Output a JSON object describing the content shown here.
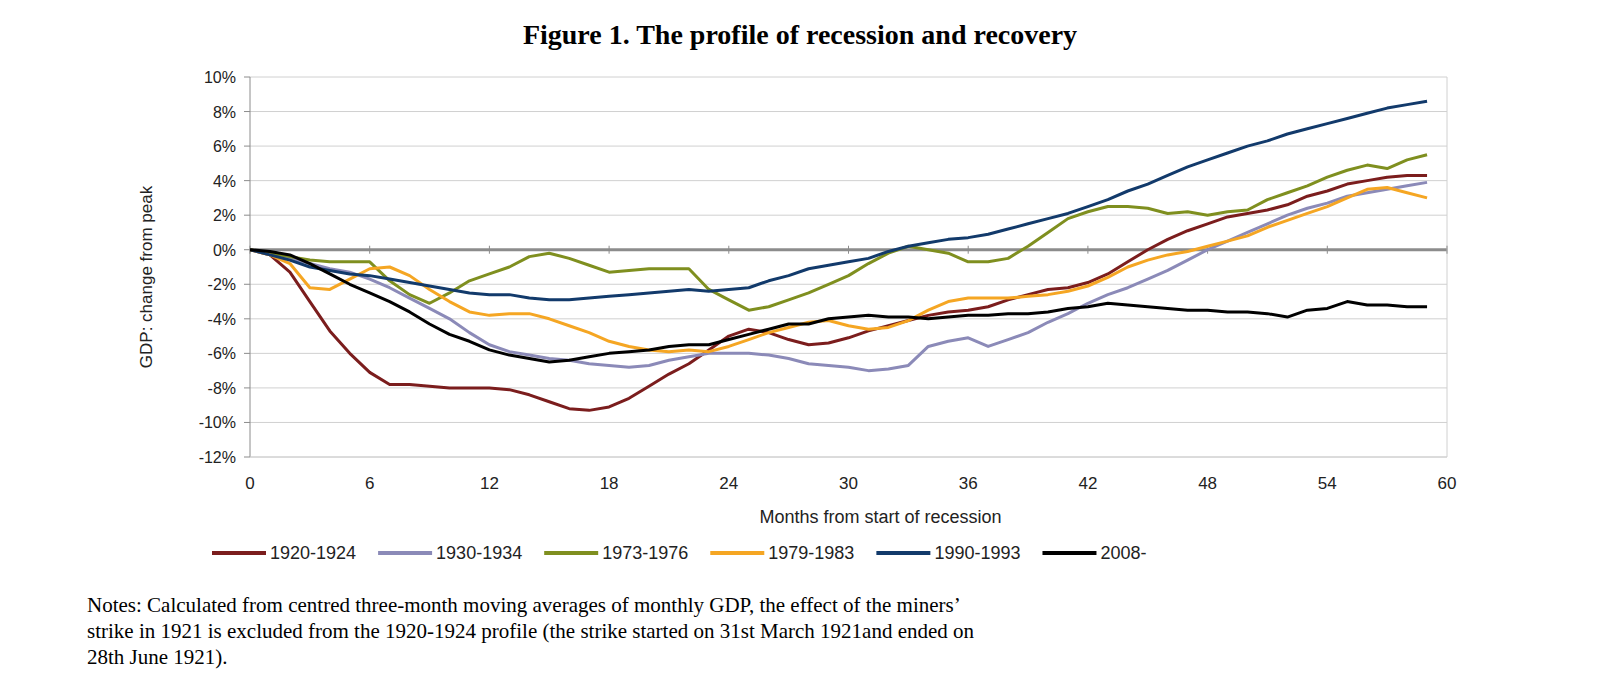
{
  "chart_data": {
    "type": "line",
    "title": "Figure 1. The profile of recession and recovery",
    "x_label": "Months from start of recession",
    "y_label": "GDP: change from peak",
    "notes": [
      "Notes: Calculated from centred three-month moving averages of monthly GDP, the effect of the miners’",
      "strike in 1921 is excluded from the 1920-1924 profile (the strike started on 31st March 1921and ended on",
      "28th June 1921)."
    ],
    "x": [
      0,
      1,
      2,
      3,
      4,
      5,
      6,
      7,
      8,
      9,
      10,
      11,
      12,
      13,
      14,
      15,
      16,
      17,
      18,
      19,
      20,
      21,
      22,
      23,
      24,
      25,
      26,
      27,
      28,
      29,
      30,
      31,
      32,
      33,
      34,
      35,
      36,
      37,
      38,
      39,
      40,
      41,
      42,
      43,
      44,
      45,
      46,
      47,
      48,
      49,
      50,
      51,
      52,
      53,
      54,
      55,
      56,
      57,
      58,
      59
    ],
    "xlim": [
      0,
      60
    ],
    "xticks": [
      0,
      6,
      12,
      18,
      24,
      30,
      36,
      42,
      48,
      54,
      60
    ],
    "ylim": [
      -12,
      10
    ],
    "yticks": [
      {
        "value": -12,
        "label": "-12%"
      },
      {
        "value": -10,
        "label": "-10%"
      },
      {
        "value": -8,
        "label": "-8%"
      },
      {
        "value": -6,
        "label": "-6%"
      },
      {
        "value": -4,
        "label": "-4%"
      },
      {
        "value": -2,
        "label": "-2%"
      },
      {
        "value": 0,
        "label": "0%"
      },
      {
        "value": 2,
        "label": "2%"
      },
      {
        "value": 4,
        "label": "4%"
      },
      {
        "value": 6,
        "label": "6%"
      },
      {
        "value": 8,
        "label": "8%"
      },
      {
        "value": 10,
        "label": "10%"
      }
    ],
    "grid": true,
    "legend": "bottom",
    "series": [
      {
        "name": "1920-1924",
        "color": "#7b1d1d",
        "values": [
          0,
          -0.3,
          -1.3,
          -3,
          -4.7,
          -6,
          -7.1,
          -7.8,
          -7.8,
          -7.9,
          -8,
          -8,
          -8,
          -8.1,
          -8.4,
          -8.8,
          -9.2,
          -9.3,
          -9.1,
          -8.6,
          -7.9,
          -7.2,
          -6.6,
          -5.8,
          -5,
          -4.6,
          -4.8,
          -5.2,
          -5.5,
          -5.4,
          -5.1,
          -4.7,
          -4.4,
          -4.1,
          -3.8,
          -3.6,
          -3.5,
          -3.3,
          -2.9,
          -2.6,
          -2.3,
          -2.2,
          -1.9,
          -1.4,
          -0.7,
          0,
          0.6,
          1.1,
          1.5,
          1.9,
          2.1,
          2.3,
          2.6,
          3.1,
          3.4,
          3.8,
          4,
          4.2,
          4.3,
          4.3
        ]
      },
      {
        "name": "1930-1934",
        "color": "#8b8ab8",
        "values": [
          0,
          -0.2,
          -0.5,
          -0.8,
          -1.1,
          -1.3,
          -1.7,
          -2.2,
          -2.8,
          -3.4,
          -4,
          -4.8,
          -5.5,
          -5.9,
          -6.1,
          -6.3,
          -6.4,
          -6.6,
          -6.7,
          -6.8,
          -6.7,
          -6.4,
          -6.2,
          -6,
          -6,
          -6,
          -6.1,
          -6.3,
          -6.6,
          -6.7,
          -6.8,
          -7,
          -6.9,
          -6.7,
          -5.6,
          -5.3,
          -5.1,
          -5.6,
          -5.2,
          -4.8,
          -4.2,
          -3.7,
          -3.1,
          -2.6,
          -2.2,
          -1.7,
          -1.2,
          -0.6,
          0,
          0.5,
          1,
          1.5,
          2,
          2.4,
          2.7,
          3.1,
          3.3,
          3.5,
          3.7,
          3.9
        ]
      },
      {
        "name": "1973-1976",
        "color": "#7f8f1f",
        "values": [
          0,
          -0.2,
          -0.4,
          -0.6,
          -0.7,
          -0.7,
          -0.7,
          -1.8,
          -2.6,
          -3.1,
          -2.5,
          -1.8,
          -1.4,
          -1,
          -0.4,
          -0.2,
          -0.5,
          -0.9,
          -1.3,
          -1.2,
          -1.1,
          -1.1,
          -1.1,
          -2.3,
          -2.9,
          -3.5,
          -3.3,
          -2.9,
          -2.5,
          -2,
          -1.5,
          -0.8,
          -0.2,
          0.2,
          0,
          -0.2,
          -0.7,
          -0.7,
          -0.5,
          0.2,
          1,
          1.8,
          2.2,
          2.5,
          2.5,
          2.4,
          2.1,
          2.2,
          2,
          2.2,
          2.3,
          2.9,
          3.3,
          3.7,
          4.2,
          4.6,
          4.9,
          4.7,
          5.2,
          5.5
        ]
      },
      {
        "name": "1979-1983",
        "color": "#f5a623",
        "values": [
          0,
          -0.3,
          -0.8,
          -2.2,
          -2.3,
          -1.7,
          -1.1,
          -1,
          -1.5,
          -2.3,
          -3,
          -3.6,
          -3.8,
          -3.7,
          -3.7,
          -4,
          -4.4,
          -4.8,
          -5.3,
          -5.6,
          -5.8,
          -5.9,
          -5.8,
          -5.9,
          -5.6,
          -5.2,
          -4.8,
          -4.5,
          -4.2,
          -4.1,
          -4.4,
          -4.6,
          -4.5,
          -4.1,
          -3.5,
          -3,
          -2.8,
          -2.8,
          -2.8,
          -2.7,
          -2.6,
          -2.4,
          -2.1,
          -1.6,
          -1,
          -0.6,
          -0.3,
          -0.1,
          0.2,
          0.5,
          0.8,
          1.3,
          1.7,
          2.1,
          2.5,
          3,
          3.5,
          3.6,
          3.3,
          3
        ]
      },
      {
        "name": "1990-1993",
        "color": "#123a6b",
        "values": [
          0,
          -0.3,
          -0.6,
          -1,
          -1.2,
          -1.4,
          -1.5,
          -1.7,
          -1.9,
          -2.1,
          -2.3,
          -2.5,
          -2.6,
          -2.6,
          -2.8,
          -2.9,
          -2.9,
          -2.8,
          -2.7,
          -2.6,
          -2.5,
          -2.4,
          -2.3,
          -2.4,
          -2.3,
          -2.2,
          -1.8,
          -1.5,
          -1.1,
          -0.9,
          -0.7,
          -0.5,
          -0.1,
          0.2,
          0.4,
          0.6,
          0.7,
          0.9,
          1.2,
          1.5,
          1.8,
          2.1,
          2.5,
          2.9,
          3.4,
          3.8,
          4.3,
          4.8,
          5.2,
          5.6,
          6,
          6.3,
          6.7,
          7,
          7.3,
          7.6,
          7.9,
          8.2,
          8.4,
          8.6
        ]
      },
      {
        "name": "2008-",
        "color": "#000000",
        "values": [
          0,
          -0.1,
          -0.3,
          -0.8,
          -1.4,
          -2,
          -2.5,
          -3,
          -3.6,
          -4.3,
          -4.9,
          -5.3,
          -5.8,
          -6.1,
          -6.3,
          -6.5,
          -6.4,
          -6.2,
          -6,
          -5.9,
          -5.8,
          -5.6,
          -5.5,
          -5.5,
          -5.2,
          -4.9,
          -4.6,
          -4.3,
          -4.3,
          -4,
          -3.9,
          -3.8,
          -3.9,
          -3.9,
          -4,
          -3.9,
          -3.8,
          -3.8,
          -3.7,
          -3.7,
          -3.6,
          -3.4,
          -3.3,
          -3.1,
          -3.2,
          -3.3,
          -3.4,
          -3.5,
          -3.5,
          -3.6,
          -3.6,
          -3.7,
          -3.9,
          -3.5,
          -3.4,
          -3,
          -3.2,
          -3.2,
          -3.3,
          -3.3
        ]
      }
    ]
  }
}
